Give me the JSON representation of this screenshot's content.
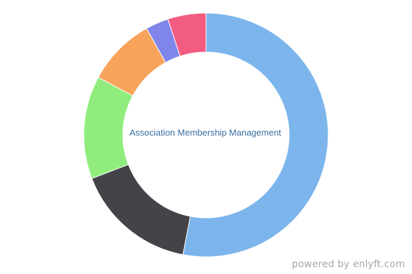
{
  "chart_data": {
    "type": "pie",
    "variant": "donut",
    "center_label": "Association Membership Management",
    "legend": "none",
    "series": [
      {
        "values": [
          52.5,
          16.0,
          13.5,
          9.0,
          3.0,
          5.0
        ],
        "colors": [
          "#7cb5ec",
          "#434348",
          "#90ed7d",
          "#f7a35c",
          "#8085e9",
          "#f15c80"
        ]
      }
    ]
  },
  "footer": {
    "watermark": "powered by enlyft.com"
  }
}
